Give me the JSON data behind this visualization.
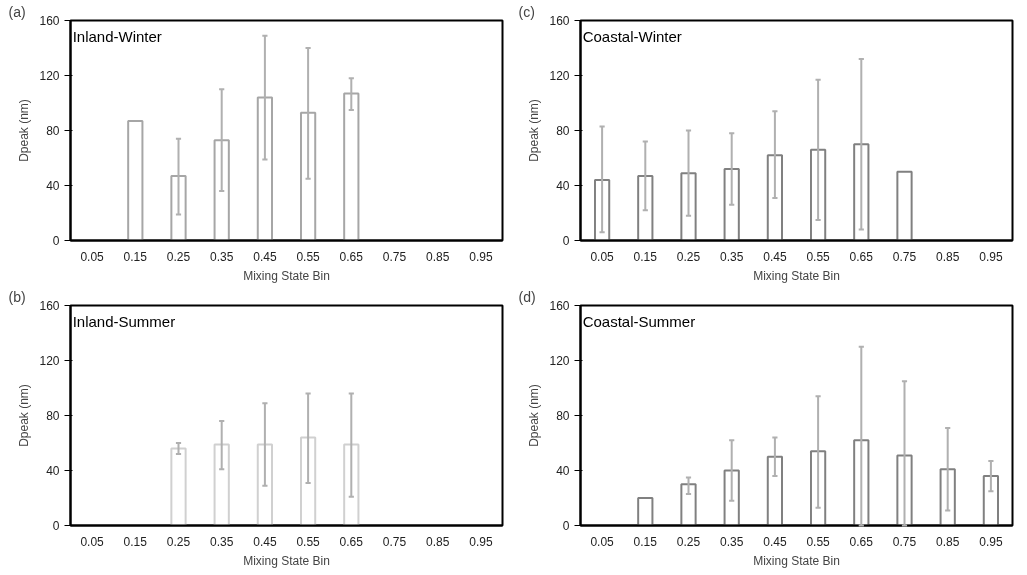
{
  "chart_data": [
    {
      "type": "bar",
      "title": "Inland-Winter",
      "annotations": [
        "(a)"
      ],
      "xlabel": "Mixing State Bin",
      "ylabel": "Dpeak (nm)",
      "categories": [
        "0.05",
        "0.15",
        "0.25",
        "0.35",
        "0.45",
        "0.55",
        "0.65",
        "0.75",
        "0.85",
        "0.95"
      ],
      "series": [
        {
          "color": "#a6a6a6",
          "values": [
            null,
            87,
            47,
            73,
            104,
            93,
            107,
            null,
            null,
            null
          ],
          "errors": [
            null,
            null,
            [
              19,
              74
            ],
            [
              36,
              110
            ],
            [
              59,
              149
            ],
            [
              45,
              140
            ],
            [
              95,
              118
            ],
            null,
            null,
            null
          ]
        }
      ],
      "ylim": [
        0,
        160
      ],
      "yticks": [
        0,
        40,
        80,
        120,
        160
      ]
    },
    {
      "type": "bar",
      "title": "Coastal-Winter",
      "annotations": [
        "(c)"
      ],
      "xlabel": "Mixing State Bin",
      "ylabel": "Dpeak (nm)",
      "categories": [
        "0.05",
        "0.15",
        "0.25",
        "0.35",
        "0.45",
        "0.55",
        "0.65",
        "0.75",
        "0.85",
        "0.95"
      ],
      "series": [
        {
          "color": "#808080",
          "values": [
            44,
            47,
            49,
            52,
            62,
            66,
            70,
            50,
            null,
            null
          ],
          "errors": [
            [
              6,
              83
            ],
            [
              22,
              72
            ],
            [
              18,
              80
            ],
            [
              26,
              78
            ],
            [
              31,
              94
            ],
            [
              15,
              117
            ],
            [
              8,
              132
            ],
            null,
            null,
            null
          ]
        }
      ],
      "ylim": [
        0,
        160
      ],
      "yticks": [
        0,
        40,
        80,
        120,
        160
      ]
    },
    {
      "type": "bar",
      "title": "Inland-Summer",
      "annotations": [
        "(b)"
      ],
      "xlabel": "Mixing State Bin",
      "ylabel": "Dpeak (nm)",
      "categories": [
        "0.05",
        "0.15",
        "0.25",
        "0.35",
        "0.45",
        "0.55",
        "0.65",
        "0.75",
        "0.85",
        "0.95"
      ],
      "series": [
        {
          "color": "#d0d0d0",
          "values": [
            null,
            null,
            56,
            59,
            59,
            64,
            59,
            null,
            null,
            null
          ],
          "errors": [
            null,
            null,
            [
              52,
              60
            ],
            [
              41,
              76
            ],
            [
              29,
              89
            ],
            [
              31,
              96
            ],
            [
              21,
              96
            ],
            null,
            null,
            null
          ]
        }
      ],
      "ylim": [
        0,
        160
      ],
      "yticks": [
        0,
        40,
        80,
        120,
        160
      ]
    },
    {
      "type": "bar",
      "title": "Coastal-Summer",
      "annotations": [
        "(d)"
      ],
      "xlabel": "Mixing State Bin",
      "ylabel": "Dpeak (nm)",
      "categories": [
        "0.05",
        "0.15",
        "0.25",
        "0.35",
        "0.45",
        "0.55",
        "0.65",
        "0.75",
        "0.85",
        "0.95"
      ],
      "series": [
        {
          "color": "#808080",
          "values": [
            null,
            20,
            30,
            40,
            50,
            54,
            62,
            51,
            41,
            36
          ],
          "errors": [
            null,
            null,
            [
              23,
              35
            ],
            [
              18,
              62
            ],
            [
              36,
              64
            ],
            [
              13,
              94
            ],
            [
              0,
              130
            ],
            [
              0,
              105
            ],
            [
              11,
              71
            ],
            [
              25,
              47
            ]
          ]
        }
      ],
      "ylim": [
        0,
        160
      ],
      "yticks": [
        0,
        40,
        80,
        120,
        160
      ]
    }
  ]
}
